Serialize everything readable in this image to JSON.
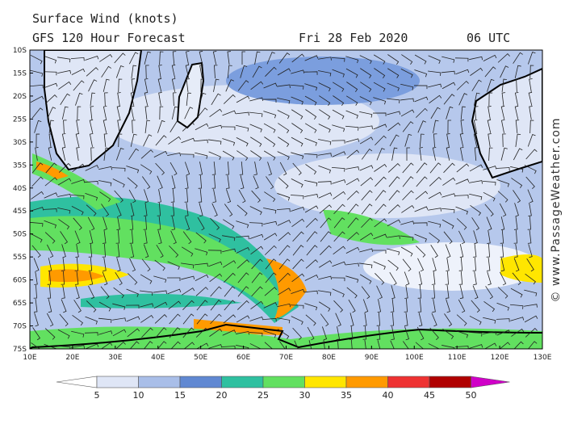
{
  "header": {
    "title": "Surface Wind (knots)",
    "subtitle": "GFS 120 Hour Forecast",
    "date": "Fri 28 Feb 2020",
    "time": "06 UTC"
  },
  "map": {
    "lat_labels": [
      "10S",
      "15S",
      "20S",
      "25S",
      "30S",
      "35S",
      "40S",
      "45S",
      "50S",
      "55S",
      "60S",
      "65S",
      "70S",
      "75S"
    ],
    "lon_labels": [
      "10E",
      "20E",
      "30E",
      "40E",
      "50E",
      "60E",
      "70E",
      "80E",
      "90E",
      "100E",
      "110E",
      "120E",
      "130E"
    ]
  },
  "legend": {
    "colors": [
      "#ffffff",
      "#dfe6f6",
      "#a9bee8",
      "#6088d2",
      "#2fc0a0",
      "#62e060",
      "#ffe600",
      "#ff9a00",
      "#ee3232",
      "#b00000",
      "#d000c8"
    ],
    "labels": [
      "5",
      "10",
      "15",
      "20",
      "25",
      "30",
      "35",
      "40",
      "45",
      "50"
    ]
  },
  "credit": "© www.PassageWeather.com"
}
